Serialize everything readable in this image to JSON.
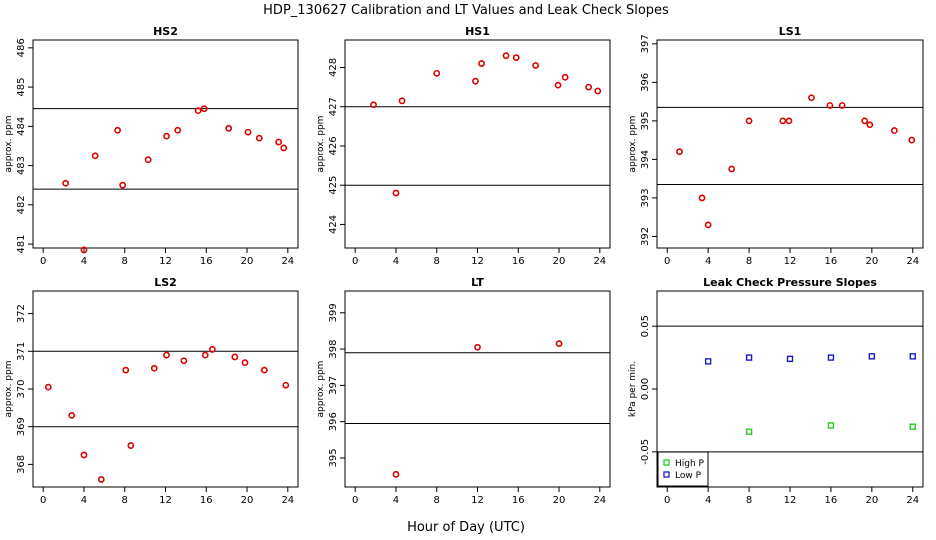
{
  "figure": {
    "title": "HDP_130627  Calibration and LT Values and Leak Check Slopes",
    "xlabel": "Hour of Day (UTC)"
  },
  "colors": {
    "point": "#dd0000",
    "high": "#22cc22",
    "low": "#1a1acc",
    "axis": "#000000"
  },
  "chart_data": [
    {
      "type": "scatter",
      "title": "HS2",
      "ylabel": "approx. ppm",
      "xlim": [
        -1,
        25
      ],
      "ylim": [
        480.9,
        486.2
      ],
      "xticks": [
        0,
        4,
        8,
        12,
        16,
        20,
        24
      ],
      "yticks": [
        481,
        482,
        483,
        484,
        485,
        486
      ],
      "hlines": [
        482.4,
        484.45
      ],
      "series": [
        {
          "color": "red",
          "points": [
            [
              2.2,
              482.55
            ],
            [
              4,
              480.85
            ],
            [
              5.1,
              483.25
            ],
            [
              7.3,
              483.9
            ],
            [
              7.8,
              482.5
            ],
            [
              10.3,
              483.15
            ],
            [
              12.1,
              483.75
            ],
            [
              13.2,
              483.9
            ],
            [
              15.2,
              484.4
            ],
            [
              15.8,
              484.45
            ],
            [
              18.2,
              483.95
            ],
            [
              20.1,
              483.85
            ],
            [
              21.2,
              483.7
            ],
            [
              23.1,
              483.6
            ],
            [
              23.6,
              483.45
            ]
          ]
        }
      ]
    },
    {
      "type": "scatter",
      "title": "HS1",
      "ylabel": "approx. ppm",
      "xlim": [
        -1,
        25
      ],
      "ylim": [
        423.4,
        428.7
      ],
      "xticks": [
        0,
        4,
        8,
        12,
        16,
        20,
        24
      ],
      "yticks": [
        424,
        425,
        426,
        427,
        428
      ],
      "hlines": [
        427.0,
        425.0
      ],
      "series": [
        {
          "color": "red",
          "points": [
            [
              1.8,
              427.05
            ],
            [
              4,
              424.8
            ],
            [
              4.6,
              427.15
            ],
            [
              8,
              427.85
            ],
            [
              11.8,
              427.65
            ],
            [
              12.4,
              428.1
            ],
            [
              14.8,
              428.3
            ],
            [
              15.8,
              428.25
            ],
            [
              17.7,
              428.05
            ],
            [
              19.9,
              427.55
            ],
            [
              20.6,
              427.75
            ],
            [
              22.9,
              427.5
            ],
            [
              23.8,
              427.4
            ]
          ]
        }
      ]
    },
    {
      "type": "scatter",
      "title": "LS1",
      "ylabel": "approx. ppm",
      "xlim": [
        -1,
        25
      ],
      "ylim": [
        391.7,
        397.1
      ],
      "xticks": [
        0,
        4,
        8,
        12,
        16,
        20,
        24
      ],
      "yticks": [
        392,
        393,
        394,
        395,
        396,
        397
      ],
      "hlines": [
        395.35,
        393.35
      ],
      "series": [
        {
          "color": "red",
          "points": [
            [
              1.2,
              394.2
            ],
            [
              3.4,
              393.0
            ],
            [
              4,
              392.3
            ],
            [
              6.3,
              393.75
            ],
            [
              8,
              395.0
            ],
            [
              11.3,
              395.0
            ],
            [
              11.9,
              395.0
            ],
            [
              14.1,
              395.6
            ],
            [
              15.9,
              395.4
            ],
            [
              17.1,
              395.4
            ],
            [
              19.3,
              395.0
            ],
            [
              19.8,
              394.9
            ],
            [
              22.2,
              394.75
            ],
            [
              23.9,
              394.5
            ]
          ]
        }
      ]
    },
    {
      "type": "scatter",
      "title": "LS2",
      "ylabel": "approx. ppm",
      "xlim": [
        -1,
        25
      ],
      "ylim": [
        367.4,
        372.6
      ],
      "xticks": [
        0,
        4,
        8,
        12,
        16,
        20,
        24
      ],
      "yticks": [
        368,
        369,
        370,
        371,
        372
      ],
      "hlines": [
        371.0,
        369.0
      ],
      "series": [
        {
          "color": "red",
          "points": [
            [
              0.5,
              370.05
            ],
            [
              2.8,
              369.3
            ],
            [
              4,
              368.25
            ],
            [
              5.7,
              367.6
            ],
            [
              8.1,
              370.5
            ],
            [
              8.6,
              368.5
            ],
            [
              10.9,
              370.55
            ],
            [
              12.1,
              370.9
            ],
            [
              13.8,
              370.75
            ],
            [
              15.9,
              370.9
            ],
            [
              16.6,
              371.05
            ],
            [
              18.8,
              370.85
            ],
            [
              19.8,
              370.7
            ],
            [
              21.7,
              370.5
            ],
            [
              23.8,
              370.1
            ]
          ]
        }
      ]
    },
    {
      "type": "scatter",
      "title": "LT",
      "ylabel": "approx. ppm",
      "xlim": [
        -1,
        25
      ],
      "ylim": [
        394.2,
        399.6
      ],
      "xticks": [
        0,
        4,
        8,
        12,
        16,
        20,
        24
      ],
      "yticks": [
        395,
        396,
        397,
        398,
        399
      ],
      "hlines": [
        397.9,
        395.95
      ],
      "series": [
        {
          "color": "red",
          "points": [
            [
              4,
              394.55
            ],
            [
              12,
              398.05
            ],
            [
              20,
              398.15
            ]
          ]
        }
      ]
    },
    {
      "type": "scatter",
      "title": "Leak Check Pressure Slopes",
      "ylabel": "kPa per min.",
      "xlim": [
        -1,
        25
      ],
      "ylim": [
        -0.078,
        0.078
      ],
      "xticks": [
        0,
        4,
        8,
        12,
        16,
        20,
        24
      ],
      "yticks": [
        -0.05,
        0.0,
        0.05
      ],
      "ytick_labels": [
        "-0.05",
        "0.00",
        "0.05"
      ],
      "hlines": [
        0.05,
        -0.05
      ],
      "series": [
        {
          "name": "High P",
          "color": "green",
          "points": [
            [
              8,
              -0.034
            ],
            [
              16,
              -0.029
            ],
            [
              24,
              -0.03
            ]
          ]
        },
        {
          "name": "Low P",
          "color": "blue",
          "points": [
            [
              4,
              0.022
            ],
            [
              8,
              0.025
            ],
            [
              12,
              0.024
            ],
            [
              16,
              0.025
            ],
            [
              20,
              0.026
            ],
            [
              24,
              0.026
            ]
          ]
        }
      ],
      "legend": {
        "position": "bottom-left",
        "entries": [
          "High P",
          "Low P"
        ]
      }
    }
  ]
}
